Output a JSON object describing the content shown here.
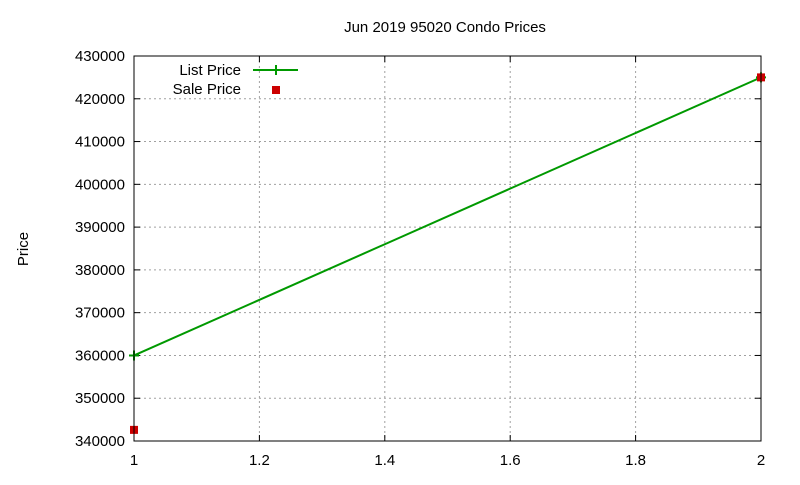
{
  "chart_data": {
    "type": "line",
    "title": "Jun 2019 95020 Condo Prices",
    "xlabel": "",
    "ylabel": "Price",
    "xlim": [
      1,
      2
    ],
    "ylim": [
      340000,
      430000
    ],
    "xticks": [
      "1",
      "1.2",
      "1.4",
      "1.6",
      "1.8",
      "2"
    ],
    "yticks": [
      "340000",
      "350000",
      "360000",
      "370000",
      "380000",
      "390000",
      "400000",
      "410000",
      "420000",
      "430000"
    ],
    "grid": true,
    "legend_position": "top-left",
    "series": [
      {
        "name": "List Price",
        "style": "linespoints",
        "marker": "plus",
        "color": "#009900",
        "x": [
          1,
          2
        ],
        "y": [
          360000,
          425000
        ]
      },
      {
        "name": "Sale Price",
        "style": "points",
        "marker": "square",
        "color": "#cc0000",
        "x": [
          1,
          2
        ],
        "y": [
          342600,
          425000
        ]
      }
    ]
  }
}
